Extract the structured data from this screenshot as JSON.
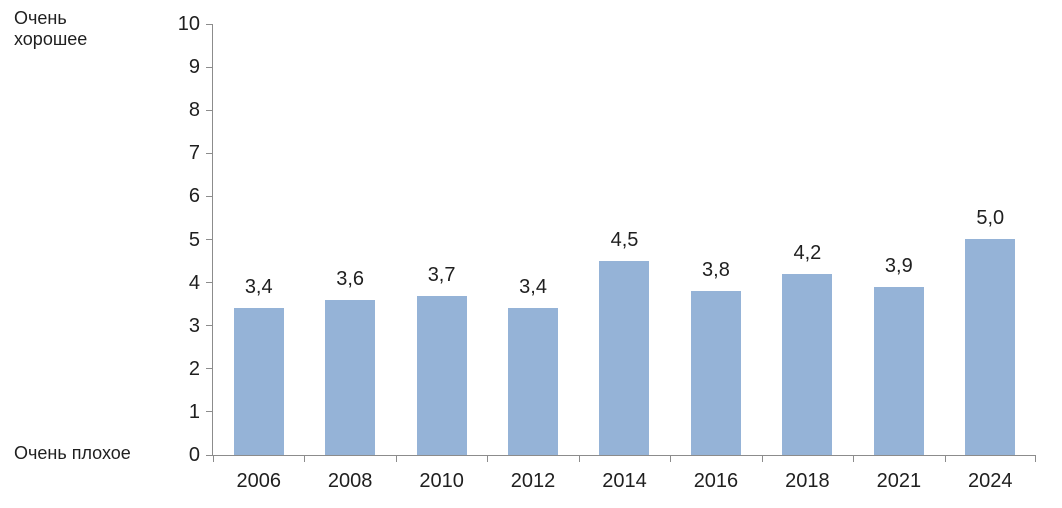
{
  "chart_data": {
    "type": "bar",
    "categories": [
      "2006",
      "2008",
      "2010",
      "2012",
      "2014",
      "2016",
      "2018",
      "2021",
      "2024"
    ],
    "values": [
      3.4,
      3.6,
      3.7,
      3.4,
      4.5,
      3.8,
      4.2,
      3.9,
      5.0
    ],
    "value_labels": [
      "3,4",
      "3,6",
      "3,7",
      "3,4",
      "4,5",
      "3,8",
      "4,2",
      "3,9",
      "5,0"
    ],
    "title": "",
    "xlabel": "",
    "ylabel": "",
    "ylim": [
      0,
      10
    ],
    "yticks": [
      0,
      1,
      2,
      3,
      4,
      5,
      6,
      7,
      8,
      9,
      10
    ],
    "axis_scale_top_label": "Очень хорошее",
    "axis_scale_bottom_label": "Очень плохое",
    "legend": "none",
    "grid": false,
    "colors": {
      "bar": "#95b3d7",
      "axis": "#8c8c8c",
      "text": "#1f1f1f",
      "background": "#ffffff"
    }
  }
}
